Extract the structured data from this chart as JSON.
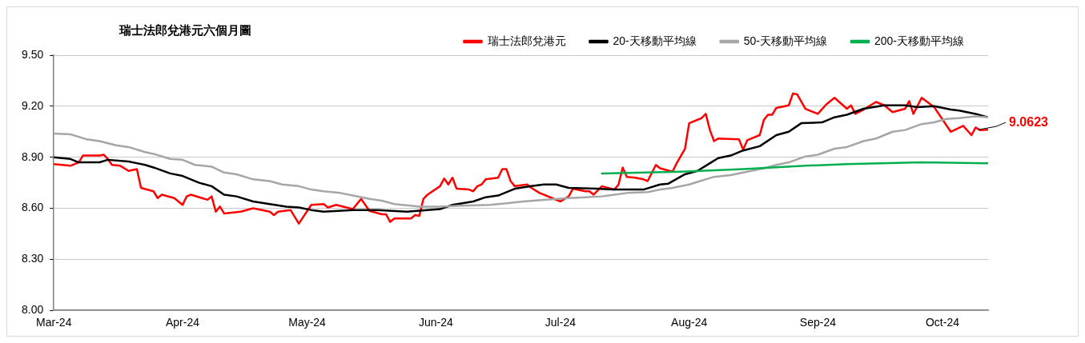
{
  "chart_data": {
    "type": "line",
    "title": "瑞士法郎兌港元六個月圖",
    "legend": "top",
    "grid": "y",
    "marker": "none",
    "line_style": "solid",
    "xlim": [
      "2024-03-01",
      "2024-10-12"
    ],
    "xticks": [
      {
        "value": "2024-03-01",
        "label": "Mar-24"
      },
      {
        "value": "2024-04-01",
        "label": "Apr-24"
      },
      {
        "value": "2024-05-01",
        "label": "May-24"
      },
      {
        "value": "2024-06-01",
        "label": "Jun-24"
      },
      {
        "value": "2024-07-01",
        "label": "Jul-24"
      },
      {
        "value": "2024-08-01",
        "label": "Aug-24"
      },
      {
        "value": "2024-09-01",
        "label": "Sep-24"
      },
      {
        "value": "2024-10-01",
        "label": "Oct-24"
      }
    ],
    "ylim": [
      8,
      9.5
    ],
    "yticks": [
      {
        "value": 8,
        "label": "8.00"
      },
      {
        "value": 8.3,
        "label": "8.30"
      },
      {
        "value": 8.6,
        "label": "8.60"
      },
      {
        "value": 8.9,
        "label": "8.90"
      },
      {
        "value": 9.2,
        "label": "9.20"
      },
      {
        "value": 9.5,
        "label": "9.50"
      }
    ],
    "annotations": [
      {
        "text": "9.0623",
        "x": "2024-10-12",
        "y": 9.0623
      }
    ],
    "series": [
      {
        "name": "瑞士法郎兌港元",
        "color": "#ff0000",
        "x": [
          "2024-03-01",
          "2024-03-05",
          "2024-03-07",
          "2024-03-08",
          "2024-03-12",
          "2024-03-13",
          "2024-03-14",
          "2024-03-15",
          "2024-03-17",
          "2024-03-19",
          "2024-03-21",
          "2024-03-22",
          "2024-03-25",
          "2024-03-26",
          "2024-03-27",
          "2024-03-30",
          "2024-04-01",
          "2024-04-02",
          "2024-04-03",
          "2024-04-07",
          "2024-04-08",
          "2024-04-09",
          "2024-04-10",
          "2024-04-11",
          "2024-04-15",
          "2024-04-18",
          "2024-04-22",
          "2024-04-23",
          "2024-04-24",
          "2024-04-27",
          "2024-04-29",
          "2024-05-02",
          "2024-05-05",
          "2024-05-06",
          "2024-05-08",
          "2024-05-12",
          "2024-05-14",
          "2024-05-16",
          "2024-05-19",
          "2024-05-20",
          "2024-05-21",
          "2024-05-22",
          "2024-05-26",
          "2024-05-27",
          "2024-05-28",
          "2024-05-29",
          "2024-05-30",
          "2024-06-02",
          "2024-06-03",
          "2024-06-04",
          "2024-06-05",
          "2024-06-06",
          "2024-06-09",
          "2024-06-10",
          "2024-06-11",
          "2024-06-12",
          "2024-06-13",
          "2024-06-16",
          "2024-06-17",
          "2024-06-18",
          "2024-06-19",
          "2024-06-20",
          "2024-06-23",
          "2024-06-24",
          "2024-06-26",
          "2024-07-01",
          "2024-07-03",
          "2024-07-04",
          "2024-07-07",
          "2024-07-08",
          "2024-07-09",
          "2024-07-11",
          "2024-07-14",
          "2024-07-15",
          "2024-07-16",
          "2024-07-17",
          "2024-07-19",
          "2024-07-21",
          "2024-07-22",
          "2024-07-24",
          "2024-07-25",
          "2024-07-28",
          "2024-07-29",
          "2024-07-31",
          "2024-08-01",
          "2024-08-04",
          "2024-08-05",
          "2024-08-06",
          "2024-08-07",
          "2024-08-08",
          "2024-08-13",
          "2024-08-14",
          "2024-08-15",
          "2024-08-18",
          "2024-08-19",
          "2024-08-20",
          "2024-08-21",
          "2024-08-22",
          "2024-08-25",
          "2024-08-26",
          "2024-08-27",
          "2024-08-29",
          "2024-09-01",
          "2024-09-03",
          "2024-09-05",
          "2024-09-08",
          "2024-09-09",
          "2024-09-10",
          "2024-09-12",
          "2024-09-15",
          "2024-09-17",
          "2024-09-19",
          "2024-09-22",
          "2024-09-23",
          "2024-09-24",
          "2024-09-26",
          "2024-09-29",
          "2024-10-03",
          "2024-10-06",
          "2024-10-08",
          "2024-10-09",
          "2024-10-10",
          "2024-10-12"
        ],
        "values": [
          8.86,
          8.85,
          8.87,
          8.91,
          8.91,
          8.915,
          8.89,
          8.855,
          8.85,
          8.82,
          8.83,
          8.72,
          8.7,
          8.66,
          8.68,
          8.66,
          8.62,
          8.67,
          8.68,
          8.65,
          8.67,
          8.58,
          8.61,
          8.57,
          8.58,
          8.6,
          8.58,
          8.56,
          8.58,
          8.59,
          8.51,
          8.62,
          8.625,
          8.605,
          8.62,
          8.595,
          8.655,
          8.585,
          8.565,
          8.565,
          8.52,
          8.54,
          8.54,
          8.56,
          8.555,
          8.655,
          8.68,
          8.73,
          8.775,
          8.74,
          8.78,
          8.715,
          8.71,
          8.7,
          8.73,
          8.74,
          8.77,
          8.78,
          8.83,
          8.83,
          8.76,
          8.73,
          8.74,
          8.72,
          8.69,
          8.64,
          8.67,
          8.715,
          8.7,
          8.7,
          8.68,
          8.73,
          8.71,
          8.74,
          8.84,
          8.785,
          8.78,
          8.77,
          8.76,
          8.855,
          8.835,
          8.815,
          8.865,
          8.95,
          9.1,
          9.13,
          9.155,
          9.06,
          8.995,
          9.01,
          9.005,
          8.945,
          9.0,
          9.03,
          9.12,
          9.15,
          9.15,
          9.19,
          9.205,
          9.275,
          9.27,
          9.185,
          9.155,
          9.21,
          9.25,
          9.185,
          9.205,
          9.155,
          9.18,
          9.225,
          9.205,
          9.165,
          9.185,
          9.23,
          9.155,
          9.25,
          9.195,
          9.05,
          9.085,
          9.03,
          9.075,
          9.06,
          9.0623
        ]
      },
      {
        "name": "20-天移動平均線",
        "color": "#000000",
        "x": [
          "2024-03-01",
          "2024-03-05",
          "2024-03-07",
          "2024-03-12",
          "2024-03-14",
          "2024-03-19",
          "2024-03-21",
          "2024-03-23",
          "2024-03-25",
          "2024-03-29",
          "2024-04-01",
          "2024-04-05",
          "2024-04-08",
          "2024-04-11",
          "2024-04-14",
          "2024-04-18",
          "2024-04-22",
          "2024-04-26",
          "2024-04-29",
          "2024-05-02",
          "2024-05-05",
          "2024-05-12",
          "2024-05-18",
          "2024-05-25",
          "2024-06-02",
          "2024-06-05",
          "2024-06-10",
          "2024-06-13",
          "2024-06-16",
          "2024-06-20",
          "2024-06-24",
          "2024-06-27",
          "2024-06-30",
          "2024-07-03",
          "2024-07-10",
          "2024-07-14",
          "2024-07-21",
          "2024-07-25",
          "2024-07-27",
          "2024-07-31",
          "2024-08-03",
          "2024-08-06",
          "2024-08-08",
          "2024-08-11",
          "2024-08-14",
          "2024-08-18",
          "2024-08-22",
          "2024-08-25",
          "2024-08-28",
          "2024-09-02",
          "2024-09-05",
          "2024-09-08",
          "2024-09-12",
          "2024-09-17",
          "2024-09-22",
          "2024-09-25",
          "2024-09-29",
          "2024-10-03",
          "2024-10-05",
          "2024-10-09",
          "2024-10-12"
        ],
        "values": [
          8.9,
          8.89,
          8.87,
          8.87,
          8.885,
          8.875,
          8.865,
          8.855,
          8.84,
          8.805,
          8.79,
          8.75,
          8.73,
          8.68,
          8.67,
          8.64,
          8.625,
          8.61,
          8.605,
          8.59,
          8.58,
          8.59,
          8.59,
          8.58,
          8.595,
          8.62,
          8.64,
          8.665,
          8.675,
          8.715,
          8.73,
          8.74,
          8.74,
          8.72,
          8.715,
          8.71,
          8.71,
          8.74,
          8.745,
          8.8,
          8.82,
          8.865,
          8.895,
          8.91,
          8.94,
          8.965,
          9.03,
          9.05,
          9.1,
          9.105,
          9.135,
          9.15,
          9.185,
          9.205,
          9.205,
          9.195,
          9.2,
          9.18,
          9.175,
          9.155,
          9.135
        ]
      },
      {
        "name": "50-天移動平均線",
        "color": "#a6a6a6",
        "x": [
          "2024-03-01",
          "2024-03-05",
          "2024-03-09",
          "2024-03-12",
          "2024-03-16",
          "2024-03-19",
          "2024-03-23",
          "2024-03-25",
          "2024-03-29",
          "2024-04-01",
          "2024-04-04",
          "2024-04-08",
          "2024-04-11",
          "2024-04-14",
          "2024-04-18",
          "2024-04-22",
          "2024-04-25",
          "2024-04-29",
          "2024-05-02",
          "2024-05-05",
          "2024-05-09",
          "2024-05-12",
          "2024-05-16",
          "2024-05-19",
          "2024-05-22",
          "2024-05-26",
          "2024-05-28",
          "2024-06-02",
          "2024-06-07",
          "2024-06-14",
          "2024-06-18",
          "2024-06-22",
          "2024-06-27",
          "2024-07-03",
          "2024-07-07",
          "2024-07-11",
          "2024-07-17",
          "2024-07-22",
          "2024-07-25",
          "2024-07-28",
          "2024-08-01",
          "2024-08-03",
          "2024-08-07",
          "2024-08-11",
          "2024-08-15",
          "2024-08-19",
          "2024-08-22",
          "2024-08-25",
          "2024-08-29",
          "2024-09-01",
          "2024-09-05",
          "2024-09-08",
          "2024-09-12",
          "2024-09-15",
          "2024-09-19",
          "2024-09-22",
          "2024-09-26",
          "2024-09-29",
          "2024-10-02",
          "2024-10-05",
          "2024-10-09",
          "2024-10-12"
        ],
        "values": [
          9.04,
          9.035,
          9.005,
          8.995,
          8.97,
          8.96,
          8.93,
          8.92,
          8.89,
          8.885,
          8.855,
          8.845,
          8.81,
          8.8,
          8.77,
          8.76,
          8.74,
          8.73,
          8.71,
          8.7,
          8.69,
          8.675,
          8.655,
          8.645,
          8.625,
          8.615,
          8.61,
          8.61,
          8.615,
          8.62,
          8.63,
          8.64,
          8.65,
          8.66,
          8.665,
          8.67,
          8.69,
          8.695,
          8.71,
          8.72,
          8.74,
          8.755,
          8.785,
          8.795,
          8.815,
          8.835,
          8.855,
          8.87,
          8.905,
          8.915,
          8.95,
          8.96,
          8.995,
          9.01,
          9.05,
          9.06,
          9.095,
          9.105,
          9.125,
          9.13,
          9.14,
          9.135
        ]
      },
      {
        "name": "200-天移動平均線",
        "color": "#00b050",
        "x": [
          "2024-07-11",
          "2024-07-30",
          "2024-08-14",
          "2024-08-29",
          "2024-09-08",
          "2024-09-26",
          "2024-10-12"
        ],
        "values": [
          8.805,
          8.815,
          8.83,
          8.85,
          8.86,
          8.87,
          8.865
        ]
      }
    ]
  }
}
